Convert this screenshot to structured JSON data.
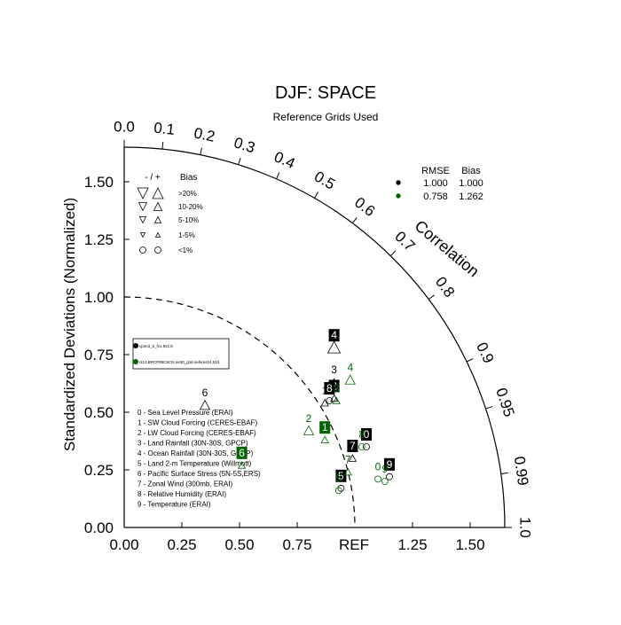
{
  "chart_data": {
    "type": "scatter",
    "title": "DJF: SPACE",
    "subtitle": "Reference Grids Used",
    "ylabel": "Standardized Deviations (Normalized)",
    "ref_label": "REF",
    "corr_label": "Correlation",
    "xlim": [
      0,
      1.65
    ],
    "ylim": [
      0,
      1.65
    ],
    "x_ticks": [
      "0.00",
      "0.25",
      "0.50",
      "0.75",
      "1.25",
      "1.50"
    ],
    "x_tick_values": [
      0,
      0.25,
      0.5,
      0.75,
      1.25,
      1.5
    ],
    "y_ticks": [
      "0.00",
      "0.25",
      "0.50",
      "0.75",
      "1.00",
      "1.25",
      "1.50"
    ],
    "y_tick_values": [
      0,
      0.25,
      0.5,
      0.75,
      1.0,
      1.25,
      1.5
    ],
    "corr_ticks": [
      "0.0",
      "0.1",
      "0.2",
      "0.3",
      "0.4",
      "0.5",
      "0.6",
      "0.7",
      "0.8",
      "0.9",
      "0.95",
      "0.99",
      "1.0"
    ],
    "corr_tick_values": [
      0.0,
      0.1,
      0.2,
      0.3,
      0.4,
      0.5,
      0.6,
      0.7,
      0.8,
      0.9,
      0.95,
      0.99,
      1.0
    ],
    "stats_legend": {
      "headers": [
        "RMSE",
        "Bias"
      ],
      "rows": [
        {
          "color": "#000000",
          "rmse": "1.000",
          "bias": "1.000"
        },
        {
          "color": "#006400",
          "rmse": "0.758",
          "bias": "1.262"
        }
      ]
    },
    "bias_legend": {
      "header_sign": "- / +",
      "header": "Bias",
      "rows": [
        {
          "label": ">20%",
          "size": 12
        },
        {
          "label": "10-20%",
          "size": 9
        },
        {
          "label": "5-10%",
          "size": 7
        },
        {
          "label": "1-5%",
          "size": 5
        },
        {
          "label": "<1%",
          "size": 7,
          "circle": true
        }
      ]
    },
    "case_legend": [
      "cpim3_5_fv1.9x2.5",
      "ct13.BRCP85C5CN.ne30_g16.sehires24.012"
    ],
    "case_colors": [
      "#000000",
      "#006400"
    ],
    "variable_legend": [
      "0 - Sea Level Pressure (ERAI)",
      "1 - SW Cloud Forcing (CERES-EBAF)",
      "2 - LW Cloud Forcing (CERES-EBAF)",
      "3 - Land Rainfall (30N-30S, GPCP)",
      "4 - Ocean Rainfall (30N-30S, GPCP)",
      "5 - Land 2-m Temperature (Willmott)",
      "6 - Pacific Surface Stress (5N-5S,ERS)",
      "7 - Zonal Wind (300mb, ERAI)",
      "8 - Relative Humidity (ERAI)",
      "9 - Temperature (ERAI)"
    ],
    "series": [
      {
        "color": "#000000",
        "points": [
          {
            "id": "0",
            "x": 1.05,
            "y": 0.35,
            "marker": "circle",
            "boxed": true
          },
          {
            "id": "1",
            "x": 0.87,
            "y": 0.54,
            "marker": "tri-up-small",
            "boxed": false
          },
          {
            "id": "2",
            "x": 0.91,
            "y": 0.56,
            "marker": "tri-up-small",
            "boxed": true
          },
          {
            "id": "3",
            "x": 0.91,
            "y": 0.63,
            "marker": "tri-up-small",
            "boxed": false
          },
          {
            "id": "4",
            "x": 0.91,
            "y": 0.78,
            "marker": "tri-up-large",
            "boxed": true
          },
          {
            "id": "5",
            "x": 0.94,
            "y": 0.17,
            "marker": "circle",
            "boxed": true
          },
          {
            "id": "6",
            "x": 0.35,
            "y": 0.53,
            "marker": "tri-up-med",
            "boxed": false
          },
          {
            "id": "7",
            "x": 0.99,
            "y": 0.3,
            "marker": "tri-up-small",
            "boxed": true
          },
          {
            "id": "8",
            "x": 0.89,
            "y": 0.55,
            "marker": "circle",
            "boxed": true
          },
          {
            "id": "9",
            "x": 1.15,
            "y": 0.22,
            "marker": "circle",
            "boxed": true
          }
        ]
      },
      {
        "color": "#006400",
        "points": [
          {
            "id": "0",
            "x": 1.1,
            "y": 0.21,
            "marker": "circle",
            "boxed": false
          },
          {
            "id": "1",
            "x": 0.87,
            "y": 0.38,
            "marker": "tri-up-small",
            "boxed": true
          },
          {
            "id": "2",
            "x": 0.8,
            "y": 0.42,
            "marker": "tri-up-med",
            "boxed": false
          },
          {
            "id": "3",
            "x": 0.92,
            "y": 0.55,
            "marker": "tri-up-small",
            "boxed": false
          },
          {
            "id": "4",
            "x": 0.98,
            "y": 0.64,
            "marker": "tri-up-med",
            "boxed": false
          },
          {
            "id": "5",
            "x": 0.93,
            "y": 0.16,
            "marker": "circle",
            "boxed": false
          },
          {
            "id": "6",
            "x": 0.51,
            "y": 0.27,
            "marker": "tri-up-small",
            "boxed": true
          },
          {
            "id": "7",
            "x": 0.97,
            "y": 0.24,
            "marker": "tri-up-small",
            "boxed": false
          },
          {
            "id": "8",
            "x": 1.03,
            "y": 0.35,
            "marker": "circle",
            "boxed": false
          },
          {
            "id": "9",
            "x": 1.13,
            "y": 0.2,
            "marker": "circle",
            "boxed": false
          }
        ]
      }
    ]
  }
}
